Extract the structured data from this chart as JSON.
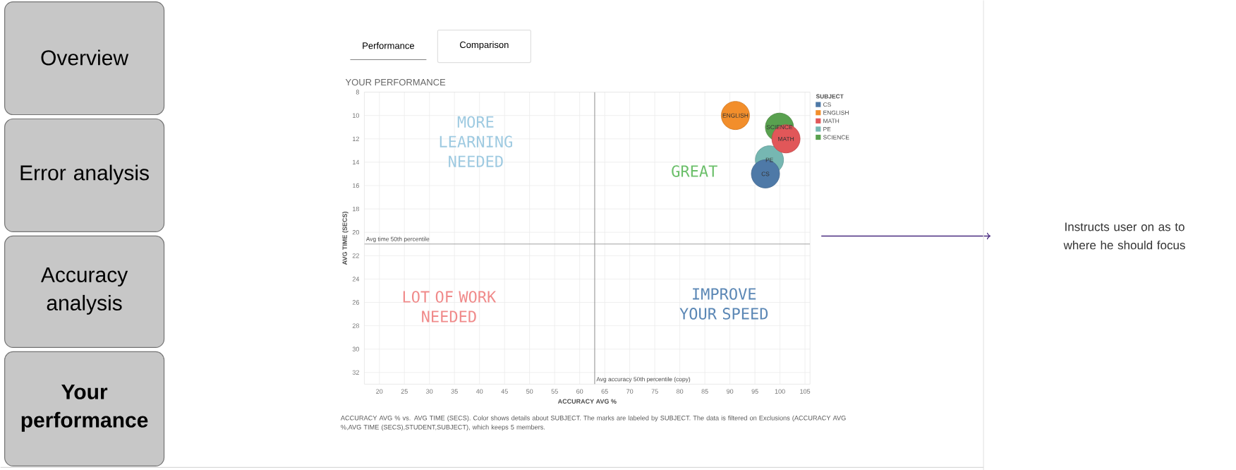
{
  "chart_data": {
    "type": "bubble",
    "title": "YOUR PERFORMANCE",
    "xlabel": "ACCURACY AVG %",
    "ylabel": "AVG TIME (SECS)",
    "legend_title": "SUBJECT",
    "xlim": [
      17,
      106
    ],
    "xticks": [
      20,
      25,
      30,
      35,
      40,
      45,
      50,
      55,
      60,
      65,
      70,
      75,
      80,
      85,
      90,
      95,
      100,
      105
    ],
    "ylim": [
      33,
      8
    ],
    "yticks": [
      8,
      10,
      12,
      14,
      16,
      18,
      20,
      22,
      24,
      26,
      28,
      30,
      32
    ],
    "grid": true,
    "legend": "top right",
    "series": [
      {
        "name": "CS",
        "color": "#4e79a7",
        "x": [
          97.1
        ],
        "values": [
          15
        ],
        "sizes": [
          1
        ]
      },
      {
        "name": "ENGLISH",
        "color": "#f28e2b",
        "x": [
          91.1
        ],
        "values": [
          10
        ],
        "sizes": [
          1
        ]
      },
      {
        "name": "MATH",
        "color": "#e15759",
        "x": [
          101.2
        ],
        "values": [
          12
        ],
        "sizes": [
          1
        ]
      },
      {
        "name": "PE",
        "color": "#76b7b2",
        "x": [
          97.9
        ],
        "values": [
          13.8
        ],
        "sizes": [
          1
        ]
      },
      {
        "name": "SCIENCE",
        "color": "#59a14f",
        "x": [
          99.9
        ],
        "values": [
          11
        ],
        "sizes": [
          1
        ]
      }
    ],
    "ref_lines": [
      {
        "axis": "x",
        "value": 63,
        "label": "Avg accuracy 50th percentile (copy)"
      },
      {
        "axis": "y",
        "value": 21,
        "label": "Avg time 50th percentile"
      }
    ],
    "annotations": [
      "MORE LEARNING NEEDED",
      "GREAT",
      "LOT OF WORK NEEDED",
      "IMPROVE YOUR SPEED",
      "Overview",
      "Error analysis",
      "Accuracy analysis",
      "Your performance",
      "Performance",
      "Comparison",
      "Instructs user on as to where he should focus",
      "ACCURACY AVG % vs. AVG TIME (SECS).  Color shows details about SUBJECT.  The marks are labeled by SUBJECT. The data is filtered on Exclusions (ACCURACY AVG %,AVG TIME (SECS),STUDENT,SUBJECT), which keeps 5 members."
    ]
  }
}
